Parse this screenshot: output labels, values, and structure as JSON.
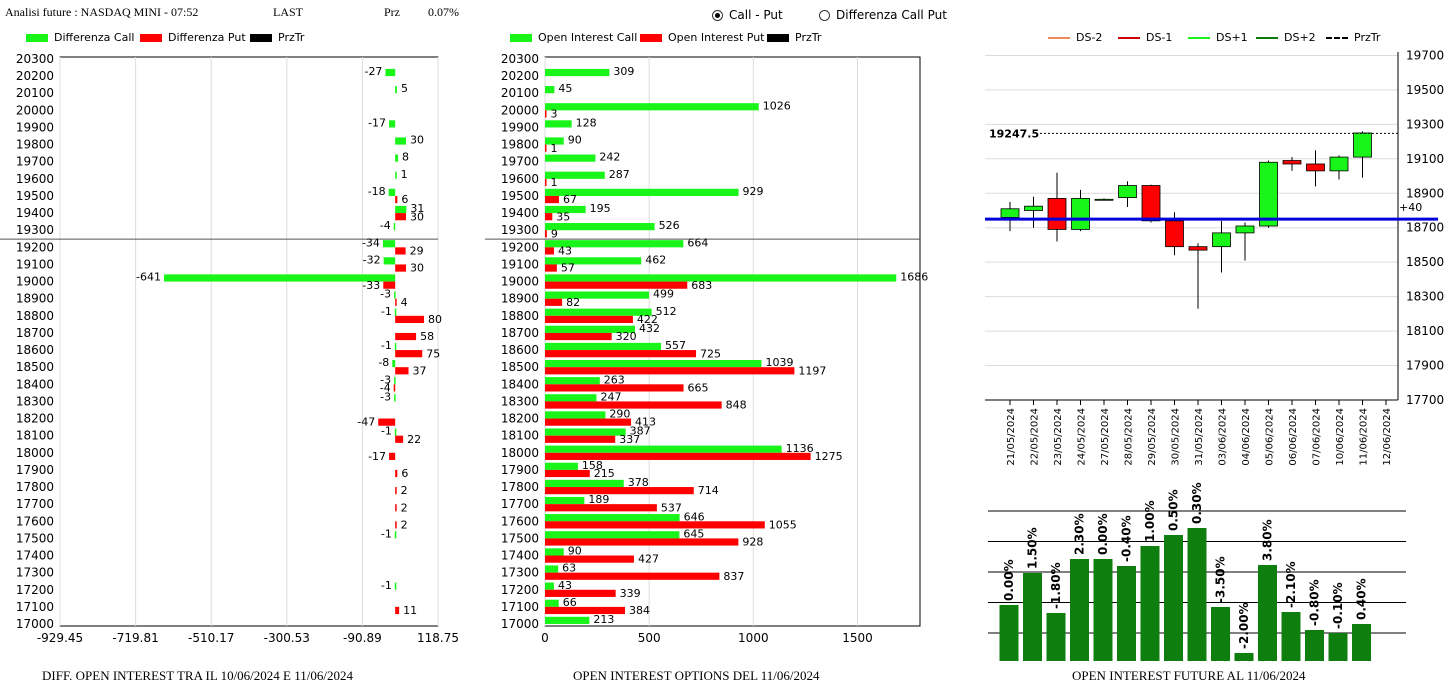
{
  "header": {
    "title": "Analisi future : NASDAQ MINI - 07:52",
    "last_label": "LAST",
    "prz_label": "Prz",
    "prz_value": "0.07%"
  },
  "mode": {
    "options": [
      "Call - Put",
      "Differenza Call Put"
    ],
    "selected": 0
  },
  "colors": {
    "green": "#19f519",
    "red": "#ff0000",
    "dark_green": "#0a7a0a",
    "blue": "#0000dd"
  },
  "captions": {
    "left": "DIFF. OPEN INTEREST TRA IL 10/06/2024 E 11/06/2024",
    "middle": "OPEN INTEREST OPTIONS DEL 11/06/2024",
    "right": "OPEN INTEREST FUTURE AL 11/06/2024"
  },
  "legend_left": [
    "Differenza Call",
    "Differenza Put",
    "PrzTr"
  ],
  "legend_mid": [
    "Open Interest Call",
    "Open Interest Put",
    "PrzTr"
  ],
  "legend_right": [
    "DS-2",
    "DS-1",
    "DS+1",
    "DS+2",
    "PrzTr"
  ],
  "chart_data": [
    {
      "type": "bar",
      "orientation": "horizontal",
      "strikes": [
        "20300",
        "20200",
        "20100",
        "20000",
        "19900",
        "19800",
        "19700",
        "19600",
        "19500",
        "19400",
        "19300",
        "19200",
        "19100",
        "19000",
        "18900",
        "18800",
        "18700",
        "18600",
        "18500",
        "18400",
        "18300",
        "18200",
        "18100",
        "18000",
        "17900",
        "17800",
        "17700",
        "17600",
        "17500",
        "17400",
        "17300",
        "17200",
        "17100",
        "17000"
      ],
      "series": [
        {
          "name": "Differenza Call",
          "values": [
            null,
            -27,
            5,
            null,
            -17,
            30,
            8,
            1,
            -18,
            31,
            -4,
            -34,
            -32,
            -641,
            -3,
            -1,
            null,
            -1,
            -8,
            -3,
            -3,
            null,
            -1,
            null,
            null,
            null,
            null,
            null,
            -1,
            null,
            null,
            -1,
            null,
            null
          ]
        },
        {
          "name": "Differenza Put",
          "values": [
            null,
            null,
            null,
            null,
            null,
            null,
            null,
            null,
            6,
            30,
            null,
            29,
            30,
            -33,
            4,
            80,
            58,
            75,
            37,
            -4,
            null,
            -47,
            22,
            -17,
            6,
            2,
            2,
            2,
            null,
            null,
            null,
            null,
            11,
            null
          ]
        }
      ],
      "xticks": [
        "-929.45",
        "-719.81",
        "-510.17",
        "-300.53",
        "-90.89",
        "118.75"
      ],
      "xlim": [
        -929.45,
        118.75
      ],
      "przTr": 19250
    },
    {
      "type": "bar",
      "orientation": "horizontal",
      "strikes": [
        "20300",
        "20200",
        "20100",
        "20000",
        "19900",
        "19800",
        "19700",
        "19600",
        "19500",
        "19400",
        "19300",
        "19200",
        "19100",
        "19000",
        "18900",
        "18800",
        "18700",
        "18600",
        "18500",
        "18400",
        "18300",
        "18200",
        "18100",
        "18000",
        "17900",
        "17800",
        "17700",
        "17600",
        "17500",
        "17400",
        "17300",
        "17200",
        "17100",
        "17000"
      ],
      "series": [
        {
          "name": "Open Interest Call",
          "values": [
            null,
            309,
            45,
            1026,
            128,
            90,
            242,
            287,
            929,
            195,
            526,
            664,
            462,
            1686,
            499,
            512,
            432,
            557,
            1039,
            263,
            247,
            290,
            387,
            1136,
            158,
            378,
            189,
            646,
            645,
            90,
            63,
            43,
            66,
            213
          ]
        },
        {
          "name": "Open Interest Put",
          "values": [
            null,
            null,
            null,
            3,
            null,
            1,
            null,
            1,
            67,
            35,
            9,
            43,
            57,
            683,
            82,
            422,
            320,
            725,
            1197,
            665,
            848,
            413,
            337,
            1275,
            215,
            714,
            537,
            1055,
            928,
            427,
            837,
            339,
            384,
            null
          ]
        }
      ],
      "xticks": [
        "0",
        "500",
        "1000",
        "1500"
      ],
      "xlim": [
        0,
        1800
      ],
      "przTr": 19250
    },
    {
      "type": "candlestick",
      "dates": [
        "21/05/2024",
        "22/05/2024",
        "23/05/2024",
        "24/05/2024",
        "27/05/2024",
        "28/05/2024",
        "29/05/2024",
        "30/05/2024",
        "31/05/2024",
        "03/06/2024",
        "04/06/2024",
        "05/06/2024",
        "06/06/2024",
        "07/06/2024",
        "10/06/2024",
        "11/06/2024",
        "12/06/2024"
      ],
      "candles": [
        {
          "o": 18760,
          "h": 18850,
          "l": 18680,
          "c": 18810
        },
        {
          "o": 18800,
          "h": 18880,
          "l": 18700,
          "c": 18825
        },
        {
          "o": 18870,
          "h": 19020,
          "l": 18620,
          "c": 18690
        },
        {
          "o": 18690,
          "h": 18920,
          "l": 18680,
          "c": 18870
        },
        {
          "o": 18860,
          "h": 18870,
          "l": 18860,
          "c": 18865
        },
        {
          "o": 18875,
          "h": 18970,
          "l": 18820,
          "c": 18945
        },
        {
          "o": 18945,
          "h": 18950,
          "l": 18730,
          "c": 18740
        },
        {
          "o": 18740,
          "h": 18790,
          "l": 18540,
          "c": 18590
        },
        {
          "o": 18590,
          "h": 18610,
          "l": 18230,
          "c": 18570
        },
        {
          "o": 18590,
          "h": 18740,
          "l": 18440,
          "c": 18670
        },
        {
          "o": 18670,
          "h": 18730,
          "l": 18510,
          "c": 18710
        },
        {
          "o": 18710,
          "h": 19090,
          "l": 18700,
          "c": 19080
        },
        {
          "o": 19090,
          "h": 19110,
          "l": 19030,
          "c": 19070
        },
        {
          "o": 19070,
          "h": 19150,
          "l": 18940,
          "c": 19030
        },
        {
          "o": 19030,
          "h": 19120,
          "l": 18980,
          "c": 19110
        },
        {
          "o": 19110,
          "h": 19260,
          "l": 18990,
          "c": 19250
        }
      ],
      "yticks": [
        "17700",
        "17900",
        "18100",
        "18300",
        "18500",
        "18700",
        "18900",
        "19100",
        "19300",
        "19500",
        "19700"
      ],
      "ylim": [
        17700,
        19720
      ],
      "przTr": 19247.5,
      "przTr_label": "19247.5",
      "blue_line": 18750,
      "blue_line_label": "+40"
    },
    {
      "type": "bar",
      "values": [
        0.0,
        1.5,
        -1.8,
        2.3,
        0.0,
        -0.4,
        1.0,
        0.5,
        0.3,
        -3.5,
        -2.0,
        3.8,
        -2.1,
        -0.8,
        -0.1,
        0.4
      ],
      "labels": [
        "0.00%",
        "1.50%",
        "-1.80%",
        "2.30%",
        "0.00%",
        "-0.40%",
        "1.00%",
        "0.50%",
        "0.30%",
        "-3.50%",
        "-2.00%",
        "3.80%",
        "-2.10%",
        "-0.80%",
        "-0.10%",
        "0.40%"
      ],
      "heights": [
        56,
        88,
        48,
        102,
        102,
        95,
        115,
        126,
        133,
        54,
        8,
        96,
        49,
        31,
        28,
        37
      ],
      "height_max": 150
    }
  ]
}
